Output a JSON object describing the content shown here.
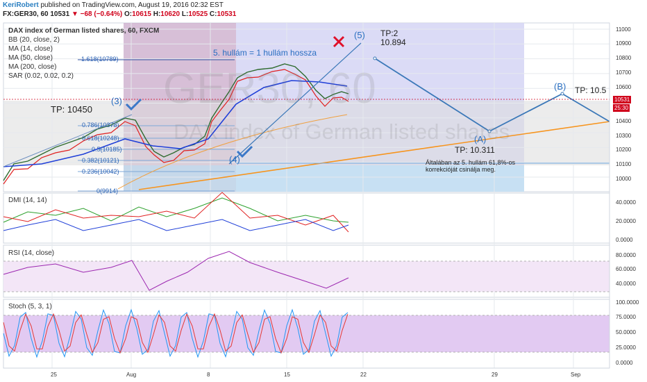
{
  "header": {
    "author": "KeriRobert",
    "published": "published on TradingView.com, August 19, 2016 02:32 EST",
    "symbol_line": "FX:GER30, 60  10531",
    "change": "▼ −68 (−0.64%)",
    "open_label": "O:",
    "open": "10615",
    "high_label": "H:",
    "high": "10620",
    "low_label": "L:",
    "low": "10525",
    "close_label": "C:",
    "close": "10531"
  },
  "main_legend": {
    "title": "DAX index of German listed shares, 60, FXCM",
    "studies": [
      "BB (20, close, 2)",
      "MA (14, close)",
      "MA (50, close)",
      "MA (200, close)",
      "SAR (0.02, 0.02, 0.2)"
    ]
  },
  "watermark": {
    "symbol": "GER30, 60",
    "name": "DAX index of German listed shares"
  },
  "annotations": {
    "wave_3": "(3)",
    "wave_4": "(4)",
    "wave_5": "(5)",
    "wave_a": "(A)",
    "wave_b": "(B)",
    "tp_3": "TP: 10450",
    "tp_5_line1": "TP:2",
    "tp_5_line2": "10.894",
    "tp_a": "TP: 10.311",
    "tp_b": "TP: 10.5",
    "note_line1": "Általában az 5. hullám 61,8%-os",
    "note_line2": "korrekcióját csinálja meg.",
    "hullam": "5. hullám = 1 hullám hossza"
  },
  "fib_levels": [
    {
      "ratio": "1.618",
      "price": "10789",
      "label": "1.618(10789)"
    },
    {
      "ratio": "0.786",
      "price": "10378",
      "label": "0.786(10378)"
    },
    {
      "ratio": "0.618",
      "price": "10248",
      "label": "0.618(10248)"
    },
    {
      "ratio": "0.5",
      "price": "10185",
      "label": "0.5(10185)"
    },
    {
      "ratio": "0.382",
      "price": "10121",
      "label": "0.382(10121)"
    },
    {
      "ratio": "0.236",
      "price": "10042",
      "label": "0.236(10042)"
    },
    {
      "ratio": "0",
      "price": "9914",
      "label": "0(9914)"
    }
  ],
  "price_axis": {
    "ticks": [
      "11000",
      "10900",
      "10800",
      "10700",
      "10600",
      "10500",
      "10400",
      "10300",
      "10200",
      "10100",
      "10000"
    ],
    "last_price": "10531",
    "countdown": "25:30"
  },
  "time_axis": {
    "ticks": [
      "25",
      "Aug",
      "8",
      "15",
      "22",
      "29",
      "Sep"
    ]
  },
  "panes": {
    "dmi": {
      "title": "DMI (14, 14)",
      "ticks": [
        "40.0000",
        "20.0000",
        "0.0000"
      ]
    },
    "rsi": {
      "title": "RSI (14, close)",
      "ticks": [
        "80.0000",
        "60.0000",
        "40.0000"
      ]
    },
    "stoch": {
      "title": "Stoch (5, 3, 1)",
      "ticks": [
        "100.0000",
        "75.0000",
        "50.0000",
        "25.0000",
        "0.0000"
      ]
    }
  },
  "colors": {
    "price_up": "#3b9d3b",
    "price_down": "#d0021b",
    "ma14": "#e02020",
    "ma50": "#1f3fd8",
    "ma200": "#f0a040",
    "bb": "#1a6d8c",
    "trend_orange": "#f7941d",
    "wave_blue": "#3b78b8",
    "dmi_plus": "#2ca02c",
    "dmi_minus": "#e02020",
    "adx": "#1f3fd8",
    "rsi": "#9c27b0",
    "stoch_k": "#2196f3",
    "stoch_d": "#e53935",
    "checkmark": "#3b78c8",
    "cross": "#e0102a"
  },
  "chart_data": {
    "type": "line",
    "title": "DAX index of German listed shares, 60, FXCM",
    "x_ticks": [
      "25",
      "Aug",
      "8",
      "15",
      "22",
      "29",
      "Sep"
    ],
    "ylim": [
      9900,
      11050
    ],
    "close_path_est": [
      {
        "x": "Jul 21",
        "y": 10050
      },
      {
        "x": "Jul 25",
        "y": 10120
      },
      {
        "x": "Jul 27",
        "y": 10230
      },
      {
        "x": "Jul 29",
        "y": 10300
      },
      {
        "x": "Aug 1",
        "y": 10400
      },
      {
        "x": "Aug 2",
        "y": 10230
      },
      {
        "x": "Aug 3",
        "y": 10130
      },
      {
        "x": "Aug 5",
        "y": 10230
      },
      {
        "x": "Aug 8",
        "y": 10390
      },
      {
        "x": "Aug 9",
        "y": 10650
      },
      {
        "x": "Aug 11",
        "y": 10700
      },
      {
        "x": "Aug 15",
        "y": 10780
      },
      {
        "x": "Aug 17",
        "y": 10580
      },
      {
        "x": "Aug 18",
        "y": 10600
      },
      {
        "x": "Aug 19",
        "y": 10531
      }
    ],
    "projection": [
      {
        "label": "(5)",
        "y": 10894
      },
      {
        "label": "(A)",
        "y": 10311
      },
      {
        "label": "(B)",
        "y": 10550
      }
    ],
    "series": [
      {
        "name": "MA (14, close)"
      },
      {
        "name": "MA (50, close)"
      },
      {
        "name": "MA (200, close)"
      }
    ]
  }
}
